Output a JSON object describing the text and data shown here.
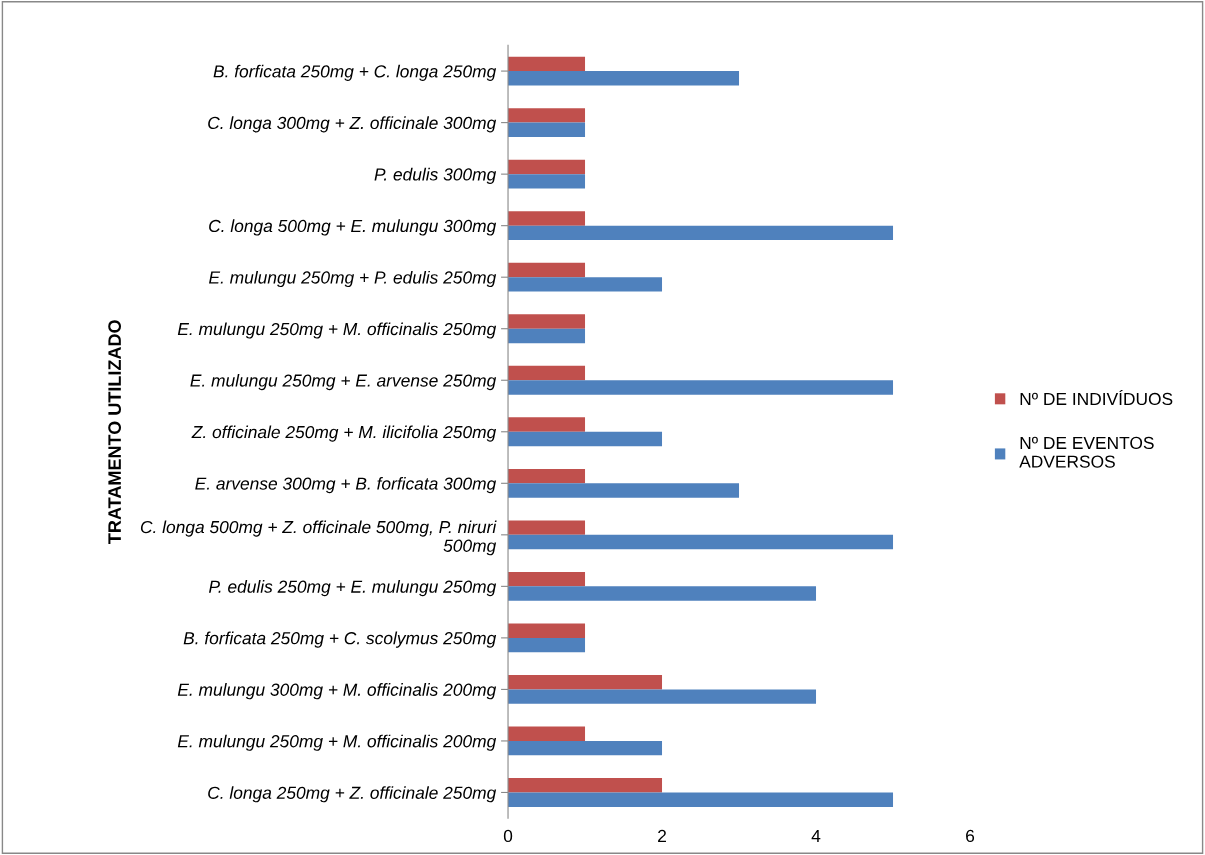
{
  "chart_data": {
    "type": "bar",
    "orientation": "horizontal",
    "ylabel": "TRATAMENTO UTILIZADO",
    "categories": [
      "B. forficata 250mg + C. longa 250mg",
      "C. longa 300mg + Z. officinale 300mg",
      "P. edulis 300mg",
      "C. longa 500mg + E. mulungu 300mg",
      "E. mulungu 250mg + P. edulis 250mg",
      "E. mulungu 250mg + M. officinalis 250mg",
      "E. mulungu 250mg + E. arvense 250mg",
      "Z. officinale 250mg + M. ilicifolia 250mg",
      "E. arvense 300mg + B. forficata 300mg",
      "C. longa 500mg + Z. officinale 500mg, P. niruri\n500mg",
      "P. edulis 250mg + E. mulungu 250mg",
      "B. forficata 250mg + C. scolymus 250mg",
      "E. mulungu 300mg + M. officinalis 200mg",
      "E. mulungu 250mg + M. officinalis 200mg",
      "C. longa 250mg + Z. officinale 250mg"
    ],
    "series": [
      {
        "name": "Nº DE INDIVÍDUOS",
        "color": "#c0504d",
        "values": [
          1,
          1,
          1,
          1,
          1,
          1,
          1,
          1,
          1,
          1,
          1,
          1,
          2,
          1,
          2
        ]
      },
      {
        "name": "Nº DE EVENTOS\nADVERSOS",
        "color": "#4f81bd",
        "values": [
          3,
          1,
          1,
          5,
          2,
          1,
          5,
          2,
          3,
          5,
          4,
          1,
          4,
          2,
          5
        ]
      }
    ],
    "xlim": [
      0,
      6
    ],
    "xticks": [
      0,
      2,
      4,
      6
    ],
    "grid": false,
    "legend": "right"
  }
}
